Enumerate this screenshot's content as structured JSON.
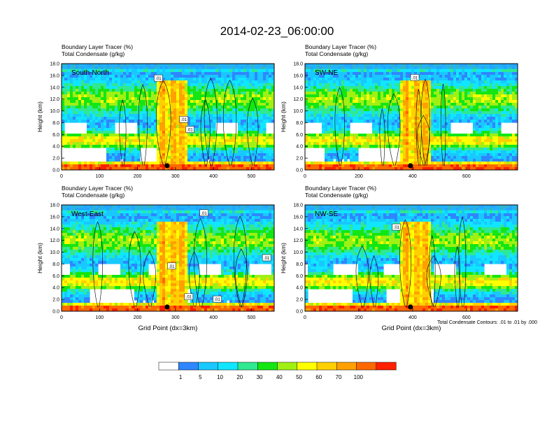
{
  "title": "2014-02-23_06:00:00",
  "chart_data": [
    {
      "type": "heatmap",
      "label": "South-North",
      "header": [
        "Boundary Layer Tracer   (%)",
        "Total Condensate   (g/kg)"
      ],
      "ylabel": "Height (km)",
      "xlabel": "",
      "ylim": [
        0,
        18
      ],
      "xlim": [
        0,
        560
      ],
      "xticks": [
        "0",
        "100",
        "200",
        "300",
        "400",
        "500"
      ],
      "yticks": [
        "0.0",
        "2.0",
        "4.0",
        "6.0",
        "8.0",
        "10.0",
        "12.0",
        "14.0",
        "16.0",
        "18.0"
      ],
      "contour_labels": [
        {
          "text": ".01",
          "x": 255,
          "y": 15.5
        },
        {
          "text": ".01",
          "x": 322,
          "y": 8.5
        },
        {
          "text": ".01",
          "x": 338,
          "y": 6.8
        }
      ],
      "marker_x": 278
    },
    {
      "type": "heatmap",
      "label": "SW-NE",
      "header": [
        "Boundary Layer Tracer   (%)",
        "Total Condensate   (g/kg)"
      ],
      "ylabel": "Height (km)",
      "xlabel": "",
      "ylim": [
        0,
        18
      ],
      "xlim": [
        0,
        790
      ],
      "xticks": [
        "0",
        "200",
        "400",
        "600"
      ],
      "yticks": [
        "0.0",
        "2.0",
        "4.0",
        "6.0",
        "8.0",
        "10.0",
        "12.0",
        "14.0",
        "16.0",
        "18.0"
      ],
      "contour_labels": [
        {
          "text": ".01",
          "x": 408,
          "y": 15.6
        }
      ],
      "marker_x": 392
    },
    {
      "type": "heatmap",
      "label": "West-East",
      "header": [
        "Boundary Layer Tracer   (%)",
        "Total Condensate   (g/kg)"
      ],
      "ylabel": "Height (km)",
      "xlabel": "Grid Point (dx=3km)",
      "ylim": [
        0,
        18
      ],
      "xlim": [
        0,
        560
      ],
      "xticks": [
        "0",
        "100",
        "200",
        "300",
        "400",
        "500"
      ],
      "yticks": [
        "0.0",
        "2.0",
        "4.0",
        "6.0",
        "8.0",
        "10.0",
        "12.0",
        "14.0",
        "16.0",
        "18.0"
      ],
      "contour_labels": [
        {
          "text": ".01",
          "x": 375,
          "y": 16.6
        },
        {
          "text": ".01",
          "x": 290,
          "y": 7.6
        },
        {
          "text": ".01",
          "x": 540,
          "y": 9.0
        },
        {
          "text": ".01",
          "x": 335,
          "y": 2.4
        },
        {
          "text": ".01",
          "x": 410,
          "y": 2.0
        }
      ],
      "marker_x": 278
    },
    {
      "type": "heatmap",
      "label": "NW-SE",
      "header": [
        "Boundary Layer Tracer   (%)",
        "Total Condensate   (g/kg)"
      ],
      "ylabel": "Height (km)",
      "xlabel": "Grid Point (dx=3km)",
      "ylim": [
        0,
        18
      ],
      "xlim": [
        0,
        790
      ],
      "xticks": [
        "0",
        "200",
        "400",
        "600"
      ],
      "yticks": [
        "0.0",
        "2.0",
        "4.0",
        "6.0",
        "8.0",
        "10.0",
        "12.0",
        "14.0",
        "16.0",
        "18.0"
      ],
      "contour_labels": [
        {
          "text": ".01",
          "x": 340,
          "y": 14.2
        }
      ],
      "marker_x": 392
    }
  ],
  "contour_note": "Total Condensate Contours: .01 to .01 by .000",
  "colorbar": {
    "labels": [
      "1",
      "5",
      "10",
      "20",
      "30",
      "40",
      "50",
      "60",
      "70",
      "100"
    ],
    "colors": [
      "#ffffff",
      "#2f86ff",
      "#18c8ff",
      "#10e6ff",
      "#30e890",
      "#14e614",
      "#a0f014",
      "#ffff00",
      "#ffd000",
      "#ffa000",
      "#ff6800",
      "#ff2000"
    ]
  }
}
